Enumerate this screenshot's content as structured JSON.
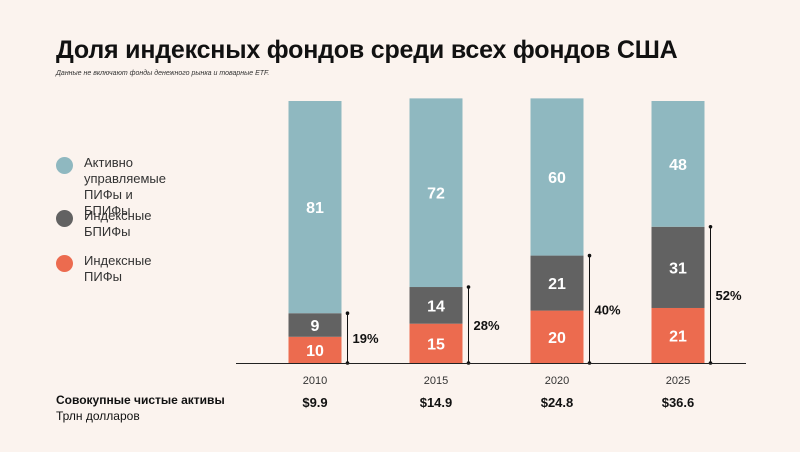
{
  "title": "Доля индексных фондов среди всех фондов США",
  "subtitle": "Данные не включают фонды денежного рынка и товарные ETF.",
  "colors": {
    "active": "#8fb8c0",
    "index_etf": "#626262",
    "index_mf": "#ec6b4f",
    "background": "#fbf3ee"
  },
  "legend": [
    {
      "label": "Активно управляемые\nПИФы и БПИФы",
      "color": "#8fb8c0"
    },
    {
      "label": "Индексные БПИФы",
      "color": "#626262"
    },
    {
      "label": "Индексные ПИФы",
      "color": "#ec6b4f"
    }
  ],
  "footer": {
    "title": "Совокупные чистые активы",
    "subtitle": "Трлн долларов"
  },
  "chart_data": {
    "type": "bar",
    "stacked": true,
    "categories": [
      "2010",
      "2015",
      "2020",
      "2025"
    ],
    "series": [
      {
        "name": "Индексные ПИФы",
        "values": [
          10,
          15,
          20,
          21
        ],
        "color": "#ec6b4f"
      },
      {
        "name": "Индексные БПИФы",
        "values": [
          9,
          14,
          21,
          31
        ],
        "color": "#626262"
      },
      {
        "name": "Активно управляемые ПИФы и БПИФы",
        "values": [
          81,
          72,
          60,
          48
        ],
        "color": "#8fb8c0"
      }
    ],
    "index_share_labels": [
      "19%",
      "28%",
      "40%",
      "52%"
    ],
    "total_net_assets": [
      "$9.9",
      "$14.9",
      "$24.8",
      "$36.6"
    ],
    "ylim": [
      0,
      100
    ]
  }
}
